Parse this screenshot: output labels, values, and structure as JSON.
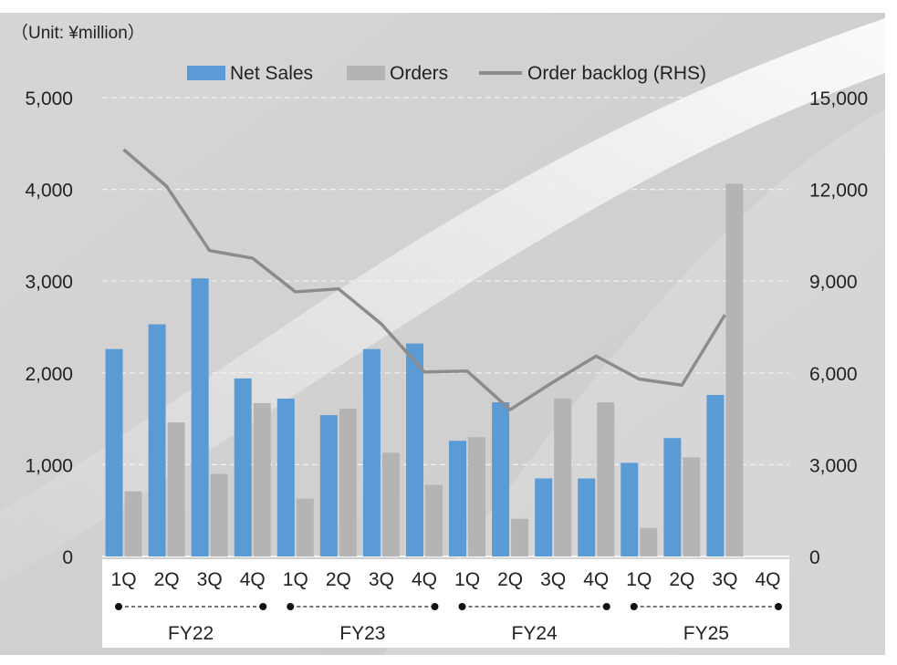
{
  "chart_data": {
    "type": "bar",
    "unit_note": "（Unit: ¥million）",
    "categories": [
      "1Q",
      "2Q",
      "3Q",
      "4Q",
      "1Q",
      "2Q",
      "3Q",
      "4Q",
      "1Q",
      "2Q",
      "3Q",
      "4Q",
      "1Q",
      "2Q",
      "3Q",
      "4Q"
    ],
    "groups": [
      {
        "label": "FY22",
        "count": 4
      },
      {
        "label": "FY23",
        "count": 4
      },
      {
        "label": "FY24",
        "count": 4
      },
      {
        "label": "FY25",
        "count": 4
      }
    ],
    "series": [
      {
        "name": "Net Sales",
        "type": "bar",
        "axis": "left",
        "color": "#5b9bd5",
        "values": [
          2260,
          2530,
          3030,
          1940,
          1720,
          1540,
          2260,
          2320,
          1260,
          1680,
          850,
          850,
          1020,
          1290,
          1760,
          null
        ]
      },
      {
        "name": "Orders",
        "type": "bar",
        "axis": "left",
        "color": "#b4b4b4",
        "values": [
          710,
          1460,
          900,
          1670,
          630,
          1610,
          1130,
          780,
          1300,
          410,
          1720,
          1680,
          310,
          1080,
          4060,
          null
        ]
      },
      {
        "name": "Order backlog (RHS)",
        "type": "line",
        "axis": "right",
        "color": "#8c8c8c",
        "values": [
          13300,
          12100,
          10000,
          9750,
          8650,
          8750,
          7600,
          6030,
          6060,
          4800,
          5700,
          6550,
          5800,
          5600,
          7900,
          null
        ]
      }
    ],
    "left_axis": {
      "ylim": [
        0,
        5000
      ],
      "ticks": [
        "0",
        "1,000",
        "2,000",
        "3,000",
        "4,000",
        "5,000"
      ]
    },
    "right_axis": {
      "ylim": [
        0,
        15000
      ],
      "ticks": [
        "0",
        "3,000",
        "6,000",
        "9,000",
        "12,000",
        "15,000"
      ]
    }
  }
}
